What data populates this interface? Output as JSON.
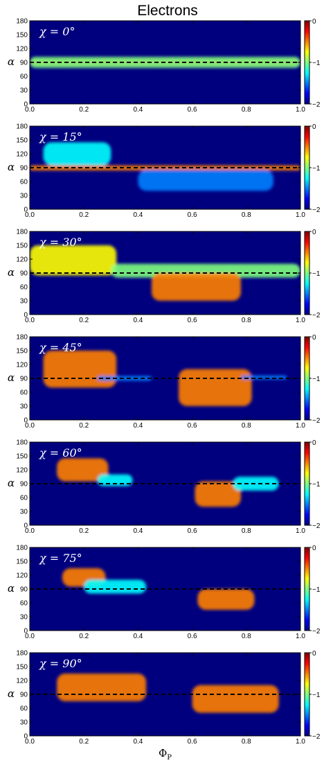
{
  "figure": {
    "title": "Electrons"
  },
  "colors": {
    "colormap": [
      "#00007f",
      "#0000ff",
      "#007fff",
      "#00ffff",
      "#7fff7f",
      "#ffff00",
      "#ff7f00",
      "#ff0000",
      "#7f0000"
    ],
    "background": "#00007f",
    "reference_line": "#000000"
  },
  "chart_data": [
    {
      "type": "heatmap",
      "annotation": "χ = 0°",
      "chi": 0,
      "xlabel": "",
      "ylabel": "α",
      "xlim": [
        0,
        1
      ],
      "ylim": [
        0,
        180
      ],
      "xticks": [
        "0.0",
        "0.2",
        "0.4",
        "0.6",
        "0.8",
        "1.0"
      ],
      "yticks": [
        "0",
        "30",
        "60",
        "90",
        "120",
        "150",
        "180"
      ],
      "colorbar": {
        "ticks": [
          "0",
          "−1",
          "−2"
        ],
        "range": [
          -2,
          0
        ]
      },
      "reference_line_y": 90,
      "blobs": [
        {
          "x": [
            0.0,
            1.0
          ],
          "y": [
            84,
            96
          ],
          "level": -0.3
        },
        {
          "x": [
            0.0,
            1.0
          ],
          "y": [
            78,
            102
          ],
          "level": -1.1
        }
      ]
    },
    {
      "type": "heatmap",
      "annotation": "χ = 15°",
      "chi": 15,
      "xlabel": "",
      "ylabel": "α",
      "xlim": [
        0,
        1
      ],
      "ylim": [
        0,
        180
      ],
      "xticks": [
        "0.0",
        "0.2",
        "0.4",
        "0.6",
        "0.8",
        "1.0"
      ],
      "yticks": [
        "0",
        "30",
        "60",
        "90",
        "120",
        "150",
        "180"
      ],
      "colorbar": {
        "ticks": [
          "0",
          "−1",
          "−2"
        ],
        "range": [
          -2,
          0
        ]
      },
      "reference_line_y": 90,
      "blobs": [
        {
          "x": [
            0.0,
            1.0
          ],
          "y": [
            84,
            95
          ],
          "level": -0.4
        },
        {
          "x": [
            0.05,
            0.3
          ],
          "y": [
            95,
            145
          ],
          "level": -1.3
        },
        {
          "x": [
            0.4,
            0.9
          ],
          "y": [
            40,
            85
          ],
          "level": -1.4
        }
      ]
    },
    {
      "type": "heatmap",
      "annotation": "χ = 30°",
      "chi": 30,
      "xlabel": "",
      "ylabel": "α",
      "xlim": [
        0,
        1
      ],
      "ylim": [
        0,
        180
      ],
      "xticks": [
        "0.0",
        "0.2",
        "0.4",
        "0.6",
        "0.8",
        "1.0"
      ],
      "yticks": [
        "0",
        "30",
        "60",
        "90",
        "120",
        "150",
        "180"
      ],
      "colorbar": {
        "ticks": [
          "0",
          "−1",
          "−2"
        ],
        "range": [
          -2,
          0
        ]
      },
      "reference_line_y": 90,
      "blobs": [
        {
          "x": [
            0.0,
            0.32
          ],
          "y": [
            85,
            150
          ],
          "level": -0.8
        },
        {
          "x": [
            0.3,
            1.0
          ],
          "y": [
            80,
            110
          ],
          "level": -1.0
        },
        {
          "x": [
            0.45,
            0.78
          ],
          "y": [
            30,
            90
          ],
          "level": -0.6
        }
      ]
    },
    {
      "type": "heatmap",
      "annotation": "χ = 45°",
      "chi": 45,
      "xlabel": "",
      "ylabel": "α",
      "xlim": [
        0,
        1
      ],
      "ylim": [
        0,
        180
      ],
      "xticks": [
        "0.0",
        "0.2",
        "0.4",
        "0.6",
        "0.8",
        "1.0"
      ],
      "yticks": [
        "0",
        "30",
        "60",
        "90",
        "120",
        "150",
        "180"
      ],
      "colorbar": {
        "ticks": [
          "0",
          "−1",
          "−2"
        ],
        "range": [
          -2,
          0
        ]
      },
      "reference_line_y": 90,
      "blobs": [
        {
          "x": [
            0.05,
            0.32
          ],
          "y": [
            70,
            150
          ],
          "level": -0.6
        },
        {
          "x": [
            0.25,
            0.45
          ],
          "y": [
            85,
            95
          ],
          "level": -1.5
        },
        {
          "x": [
            0.55,
            0.82
          ],
          "y": [
            30,
            110
          ],
          "level": -0.5
        },
        {
          "x": [
            0.78,
            0.95
          ],
          "y": [
            88,
            96
          ],
          "level": -1.5
        }
      ]
    },
    {
      "type": "heatmap",
      "annotation": "χ = 60°",
      "chi": 60,
      "xlabel": "",
      "ylabel": "α",
      "xlim": [
        0,
        1
      ],
      "ylim": [
        0,
        180
      ],
      "xticks": [
        "0.0",
        "0.2",
        "0.4",
        "0.6",
        "0.8",
        "1.0"
      ],
      "yticks": [
        "0",
        "30",
        "60",
        "90",
        "120",
        "150",
        "180"
      ],
      "colorbar": {
        "ticks": [
          "0",
          "−1",
          "−2"
        ],
        "range": [
          -2,
          0
        ]
      },
      "reference_line_y": 90,
      "blobs": [
        {
          "x": [
            0.1,
            0.29
          ],
          "y": [
            95,
            145
          ],
          "level": -0.5
        },
        {
          "x": [
            0.25,
            0.38
          ],
          "y": [
            85,
            110
          ],
          "level": -1.3
        },
        {
          "x": [
            0.61,
            0.78
          ],
          "y": [
            40,
            95
          ],
          "level": -0.5
        },
        {
          "x": [
            0.75,
            0.92
          ],
          "y": [
            75,
            105
          ],
          "level": -1.3
        }
      ]
    },
    {
      "type": "heatmap",
      "annotation": "χ = 75°",
      "chi": 75,
      "xlabel": "",
      "ylabel": "α",
      "xlim": [
        0,
        1
      ],
      "ylim": [
        0,
        180
      ],
      "xticks": [
        "0.0",
        "0.2",
        "0.4",
        "0.6",
        "0.8",
        "1.0"
      ],
      "yticks": [
        "0",
        "30",
        "60",
        "90",
        "120",
        "150",
        "180"
      ],
      "colorbar": {
        "ticks": [
          "0",
          "−1",
          "−2"
        ],
        "range": [
          -2,
          0
        ]
      },
      "reference_line_y": 90,
      "blobs": [
        {
          "x": [
            0.12,
            0.28
          ],
          "y": [
            95,
            135
          ],
          "level": -0.4
        },
        {
          "x": [
            0.2,
            0.43
          ],
          "y": [
            80,
            110
          ],
          "level": -1.3
        },
        {
          "x": [
            0.62,
            0.83
          ],
          "y": [
            45,
            90
          ],
          "level": -0.5
        }
      ]
    },
    {
      "type": "heatmap",
      "annotation": "χ = 90°",
      "chi": 90,
      "xlabel": "Φ_P",
      "ylabel": "α",
      "xlim": [
        0,
        1
      ],
      "ylim": [
        0,
        180
      ],
      "xticks": [
        "0.0",
        "0.2",
        "0.4",
        "0.6",
        "0.8",
        "1.0"
      ],
      "yticks": [
        "0",
        "30",
        "60",
        "90",
        "120",
        "150",
        "180"
      ],
      "colorbar": {
        "ticks": [
          "0",
          "−1",
          "−2"
        ],
        "range": [
          -2,
          0
        ]
      },
      "reference_line_y": 90,
      "blobs": [
        {
          "x": [
            0.1,
            0.43
          ],
          "y": [
            75,
            135
          ],
          "level": -0.6
        },
        {
          "x": [
            0.6,
            0.92
          ],
          "y": [
            50,
            110
          ],
          "level": -0.6
        }
      ]
    }
  ]
}
